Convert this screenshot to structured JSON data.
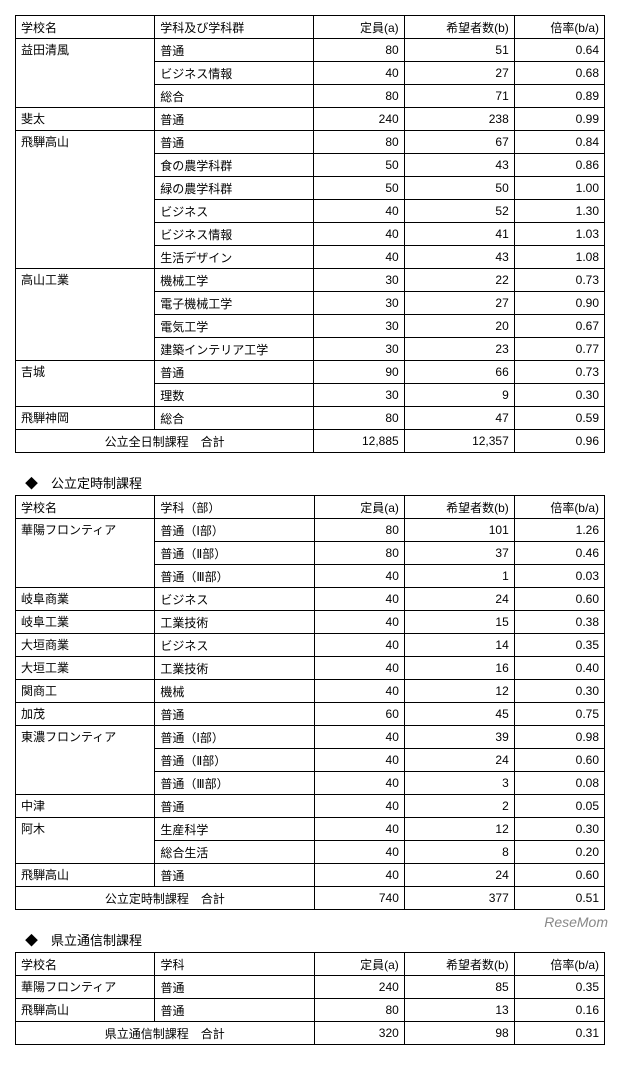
{
  "table1": {
    "headers": [
      "学校名",
      "学科及び学科群",
      "定員(a)",
      "希望者数(b)",
      "倍率(b/a)"
    ],
    "rows": [
      {
        "school": "益田清風",
        "dept": "普通",
        "cap": "80",
        "app": "51",
        "rate": "0.64",
        "first": true,
        "span": 3
      },
      {
        "school": "",
        "dept": "ビジネス情報",
        "cap": "40",
        "app": "27",
        "rate": "0.68"
      },
      {
        "school": "",
        "dept": "総合",
        "cap": "80",
        "app": "71",
        "rate": "0.89"
      },
      {
        "school": "斐太",
        "dept": "普通",
        "cap": "240",
        "app": "238",
        "rate": "0.99",
        "first": true,
        "span": 1
      },
      {
        "school": "飛騨高山",
        "dept": "普通",
        "cap": "80",
        "app": "67",
        "rate": "0.84",
        "first": true,
        "span": 6
      },
      {
        "school": "",
        "dept": "食の農学科群",
        "cap": "50",
        "app": "43",
        "rate": "0.86"
      },
      {
        "school": "",
        "dept": "緑の農学科群",
        "cap": "50",
        "app": "50",
        "rate": "1.00"
      },
      {
        "school": "",
        "dept": "ビジネス",
        "cap": "40",
        "app": "52",
        "rate": "1.30"
      },
      {
        "school": "",
        "dept": "ビジネス情報",
        "cap": "40",
        "app": "41",
        "rate": "1.03"
      },
      {
        "school": "",
        "dept": "生活デザイン",
        "cap": "40",
        "app": "43",
        "rate": "1.08"
      },
      {
        "school": "高山工業",
        "dept": "機械工学",
        "cap": "30",
        "app": "22",
        "rate": "0.73",
        "first": true,
        "span": 4
      },
      {
        "school": "",
        "dept": "電子機械工学",
        "cap": "30",
        "app": "27",
        "rate": "0.90"
      },
      {
        "school": "",
        "dept": "電気工学",
        "cap": "30",
        "app": "20",
        "rate": "0.67"
      },
      {
        "school": "",
        "dept": "建築インテリア工学",
        "cap": "30",
        "app": "23",
        "rate": "0.77"
      },
      {
        "school": "吉城",
        "dept": "普通",
        "cap": "90",
        "app": "66",
        "rate": "0.73",
        "first": true,
        "span": 2
      },
      {
        "school": "",
        "dept": "理数",
        "cap": "30",
        "app": "9",
        "rate": "0.30"
      },
      {
        "school": "飛騨神岡",
        "dept": "総合",
        "cap": "80",
        "app": "47",
        "rate": "0.59",
        "first": true,
        "span": 1
      }
    ],
    "total": {
      "label": "公立全日制課程　合計",
      "cap": "12,885",
      "app": "12,357",
      "rate": "0.96"
    }
  },
  "section2_title": "◆　公立定時制課程",
  "table2": {
    "headers": [
      "学校名",
      "学科（部）",
      "定員(a)",
      "希望者数(b)",
      "倍率(b/a)"
    ],
    "rows": [
      {
        "school": "華陽フロンティア",
        "dept": "普通（Ⅰ部）",
        "cap": "80",
        "app": "101",
        "rate": "1.26",
        "first": true,
        "span": 3
      },
      {
        "school": "",
        "dept": "普通（Ⅱ部）",
        "cap": "80",
        "app": "37",
        "rate": "0.46"
      },
      {
        "school": "",
        "dept": "普通（Ⅲ部）",
        "cap": "40",
        "app": "1",
        "rate": "0.03"
      },
      {
        "school": "岐阜商業",
        "dept": "ビジネス",
        "cap": "40",
        "app": "24",
        "rate": "0.60",
        "first": true,
        "span": 1
      },
      {
        "school": "岐阜工業",
        "dept": "工業技術",
        "cap": "40",
        "app": "15",
        "rate": "0.38",
        "first": true,
        "span": 1
      },
      {
        "school": "大垣商業",
        "dept": "ビジネス",
        "cap": "40",
        "app": "14",
        "rate": "0.35",
        "first": true,
        "span": 1
      },
      {
        "school": "大垣工業",
        "dept": "工業技術",
        "cap": "40",
        "app": "16",
        "rate": "0.40",
        "first": true,
        "span": 1
      },
      {
        "school": "関商工",
        "dept": "機械",
        "cap": "40",
        "app": "12",
        "rate": "0.30",
        "first": true,
        "span": 1
      },
      {
        "school": "加茂",
        "dept": "普通",
        "cap": "60",
        "app": "45",
        "rate": "0.75",
        "first": true,
        "span": 1
      },
      {
        "school": "東濃フロンティア",
        "dept": "普通（Ⅰ部）",
        "cap": "40",
        "app": "39",
        "rate": "0.98",
        "first": true,
        "span": 3
      },
      {
        "school": "",
        "dept": "普通（Ⅱ部）",
        "cap": "40",
        "app": "24",
        "rate": "0.60"
      },
      {
        "school": "",
        "dept": "普通（Ⅲ部）",
        "cap": "40",
        "app": "3",
        "rate": "0.08"
      },
      {
        "school": "中津",
        "dept": "普通",
        "cap": "40",
        "app": "2",
        "rate": "0.05",
        "first": true,
        "span": 1
      },
      {
        "school": "阿木",
        "dept": "生産科学",
        "cap": "40",
        "app": "12",
        "rate": "0.30",
        "first": true,
        "span": 2
      },
      {
        "school": "",
        "dept": "総合生活",
        "cap": "40",
        "app": "8",
        "rate": "0.20"
      },
      {
        "school": "飛騨高山",
        "dept": "普通",
        "cap": "40",
        "app": "24",
        "rate": "0.60",
        "first": true,
        "span": 1
      }
    ],
    "total": {
      "label": "公立定時制課程　合計",
      "cap": "740",
      "app": "377",
      "rate": "0.51"
    }
  },
  "section3_title": "◆　県立通信制課程",
  "table3": {
    "headers": [
      "学校名",
      "学科",
      "定員(a)",
      "希望者数(b)",
      "倍率(b/a)"
    ],
    "rows": [
      {
        "school": "華陽フロンティア",
        "dept": "普通",
        "cap": "240",
        "app": "85",
        "rate": "0.35",
        "first": true,
        "span": 1
      },
      {
        "school": "飛騨高山",
        "dept": "普通",
        "cap": "80",
        "app": "13",
        "rate": "0.16",
        "first": true,
        "span": 1
      }
    ],
    "total": {
      "label": "県立通信制課程　合計",
      "cap": "320",
      "app": "98",
      "rate": "0.31"
    }
  },
  "watermark": "ReseMom"
}
